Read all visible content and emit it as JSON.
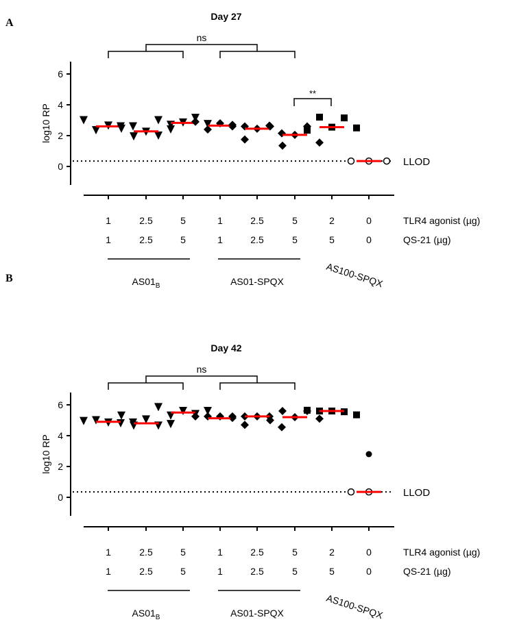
{
  "panel_labels": [
    "A",
    "B"
  ],
  "row_labels": {
    "tlr4": "TLR4 agonist (µg)",
    "qs21": "QS-21 (µg)"
  },
  "tlr4_doses": [
    "1",
    "2.5",
    "5",
    "1",
    "2.5",
    "5",
    "2",
    "0"
  ],
  "qs21_doses": [
    "1",
    "2.5",
    "5",
    "1",
    "2.5",
    "5",
    "5",
    "0"
  ],
  "groups": {
    "as01b_main": "AS01",
    "as01b_sub": "B",
    "as01_spqx": "AS01-SPQX",
    "as100_spqx": "AS100-SPQX"
  },
  "llod_label": "LLOD",
  "colors": {
    "median": "#ff0000",
    "points": "#000000"
  },
  "chart_data": [
    {
      "type": "scatter",
      "title": "Day 27",
      "ylabel": "log10 RP",
      "ylim": [
        -1.2,
        6.8
      ],
      "yticks": [
        0,
        2,
        4,
        6
      ],
      "llod": 0.35,
      "markers": [
        "triangle-down",
        "triangle-down",
        "triangle-down",
        "diamond",
        "diamond",
        "diamond",
        "square",
        "circle-open"
      ],
      "values": [
        [
          3.0,
          2.35,
          2.65,
          2.6,
          2.6
        ],
        [
          2.45,
          1.95,
          2.25,
          2.0,
          2.7
        ],
        [
          3.0,
          2.4,
          2.85,
          3.15,
          2.75
        ],
        [
          2.9,
          2.4,
          2.8,
          2.6,
          2.6
        ],
        [
          2.7,
          1.75,
          2.45,
          2.65,
          2.15
        ],
        [
          2.6,
          1.35,
          2.05,
          2.6,
          1.55
        ],
        [
          2.35,
          3.2,
          2.55,
          3.15,
          2.5
        ],
        [
          0.35,
          0.35,
          0.35
        ]
      ],
      "medians": [
        2.6,
        2.28,
        2.83,
        2.65,
        2.45,
        2.05,
        2.55,
        0.35
      ],
      "annotations": [
        {
          "text": "ns",
          "type": "bracket",
          "groups": [
            [
              1,
              3
            ],
            [
              4,
              6
            ]
          ]
        },
        {
          "text": "**",
          "type": "bracket",
          "groups": [
            6,
            7
          ]
        }
      ]
    },
    {
      "type": "scatter",
      "title": "Day 42",
      "ylabel": "log10 RP",
      "ylim": [
        -1.2,
        6.8
      ],
      "yticks": [
        0,
        2,
        4,
        6
      ],
      "llod": 0.35,
      "markers": [
        "triangle-down",
        "triangle-down",
        "triangle-down",
        "diamond",
        "diamond",
        "diamond",
        "square",
        "circle-open"
      ],
      "values": [
        [
          4.95,
          5.0,
          4.85,
          4.8,
          4.85
        ],
        [
          5.3,
          4.65,
          5.05,
          4.65,
          4.75
        ],
        [
          5.85,
          5.3,
          5.6,
          5.4,
          5.6
        ],
        [
          5.25,
          5.25,
          5.25,
          5.15,
          4.7
        ],
        [
          5.25,
          5.25,
          5.25,
          5.25,
          4.55
        ],
        [
          5.0,
          5.6,
          5.2,
          5.6,
          5.1
        ],
        [
          5.65,
          5.6,
          5.6,
          5.55,
          5.35
        ],
        [
          0.35,
          0.35,
          2.8
        ]
      ],
      "medians": [
        4.9,
        4.8,
        5.5,
        5.13,
        5.25,
        5.2,
        5.6,
        0.35
      ],
      "annotations": [
        {
          "text": "ns",
          "type": "bracket",
          "groups": [
            [
              1,
              3
            ],
            [
              4,
              6
            ]
          ]
        }
      ]
    }
  ]
}
